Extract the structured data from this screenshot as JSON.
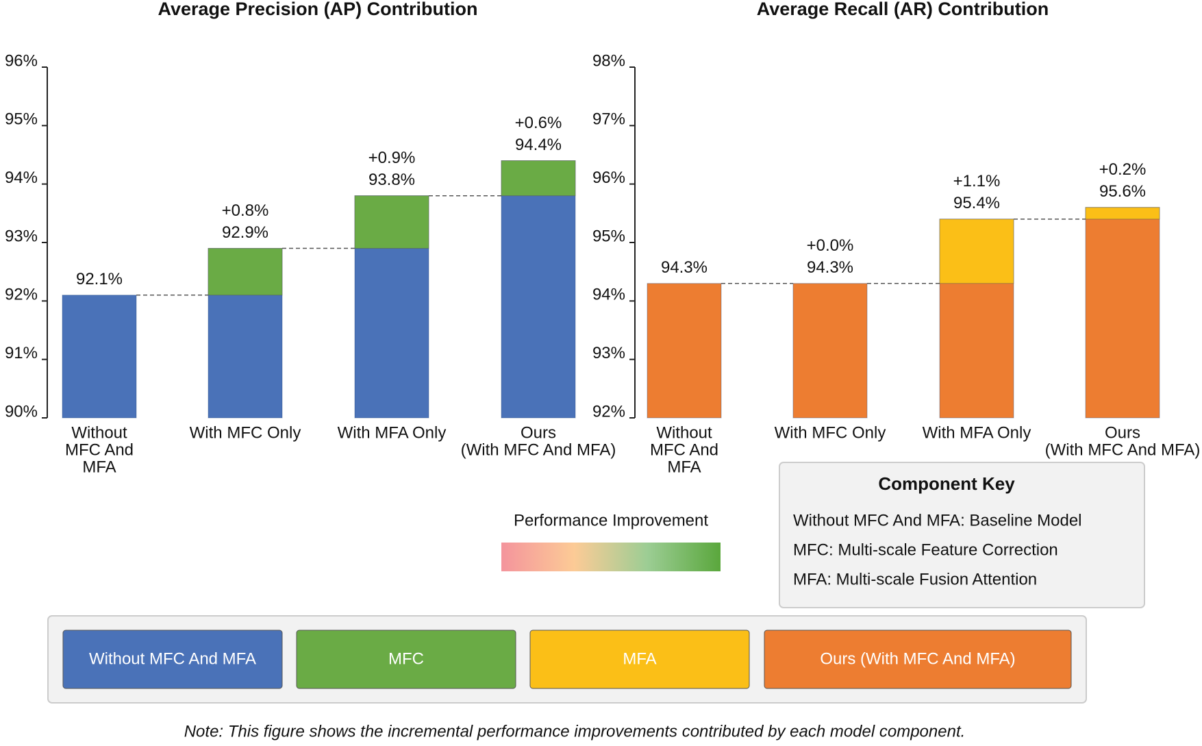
{
  "chart_data": [
    {
      "type": "waterfall",
      "title": "Average Precision (AP) Contribution",
      "categories": [
        [
          "Without",
          "MFC And",
          "MFA"
        ],
        [
          "With MFC Only"
        ],
        [
          "With MFA Only"
        ],
        [
          "Ours",
          "(With MFC And MFA)"
        ]
      ],
      "values": [
        92.1,
        92.9,
        93.8,
        94.4
      ],
      "value_labels": [
        "92.1%",
        "92.9%",
        "93.8%",
        "94.4%"
      ],
      "increments": [
        null,
        0.8,
        0.9,
        0.6
      ],
      "increment_labels": [
        null,
        "+0.8%",
        "+0.9%",
        "+0.6%"
      ],
      "color": "#4a72b8",
      "increment_colors": [
        null,
        "#6aab45",
        "#6aab45",
        "#6aab45"
      ],
      "ylim": [
        90,
        96
      ],
      "yticks": [
        {
          "value": 90,
          "label": "90%"
        },
        {
          "value": 91,
          "label": "91%"
        },
        {
          "value": 92,
          "label": "92%"
        },
        {
          "value": 93,
          "label": "93%"
        },
        {
          "value": 94,
          "label": "94%"
        },
        {
          "value": 95,
          "label": "95%"
        },
        {
          "value": 96,
          "label": "96%"
        }
      ]
    },
    {
      "type": "waterfall",
      "title": "Average Recall (AR) Contribution",
      "categories": [
        [
          "Without",
          "MFC And",
          "MFA"
        ],
        [
          "With MFC Only"
        ],
        [
          "With MFA Only"
        ],
        [
          "Ours",
          "(With MFC And MFA)"
        ]
      ],
      "values": [
        94.3,
        94.3,
        95.4,
        95.6
      ],
      "value_labels": [
        "94.3%",
        "94.3%",
        "95.4%",
        "95.6%"
      ],
      "increments": [
        null,
        0.0,
        1.1,
        0.2
      ],
      "increment_labels": [
        null,
        "+0.0%",
        "+1.1%",
        "+0.2%"
      ],
      "color": "#ed7d31",
      "increment_colors": [
        null,
        "#ed7d31",
        "#fbbf17",
        "#fbbf17"
      ],
      "ylim": [
        92,
        98
      ],
      "yticks": [
        {
          "value": 92,
          "label": "92%"
        },
        {
          "value": 93,
          "label": "93%"
        },
        {
          "value": 94,
          "label": "94%"
        },
        {
          "value": 95,
          "label": "95%"
        },
        {
          "value": 96,
          "label": "96%"
        },
        {
          "value": 97,
          "label": "97%"
        },
        {
          "value": 98,
          "label": "98%"
        }
      ]
    }
  ],
  "improvement_legend": {
    "title": "Performance Improvement",
    "colors": [
      "#f4949c",
      "#fccb96",
      "#9ccd94",
      "#5aa73c"
    ]
  },
  "component_key": {
    "title": "Component Key",
    "lines": [
      "Without MFC And MFA: Baseline Model",
      "MFC: Multi-scale Feature Correction",
      "MFA: Multi-scale Fusion Attention"
    ]
  },
  "legend": [
    {
      "label": "Without MFC And MFA",
      "color": "#4a72b8"
    },
    {
      "label": "MFC",
      "color": "#6aab45"
    },
    {
      "label": "MFA",
      "color": "#fbbf17"
    },
    {
      "label": "Ours (With MFC And MFA)",
      "color": "#ed7d31"
    }
  ],
  "note": "Note: This figure shows the incremental performance improvements contributed by each model component."
}
